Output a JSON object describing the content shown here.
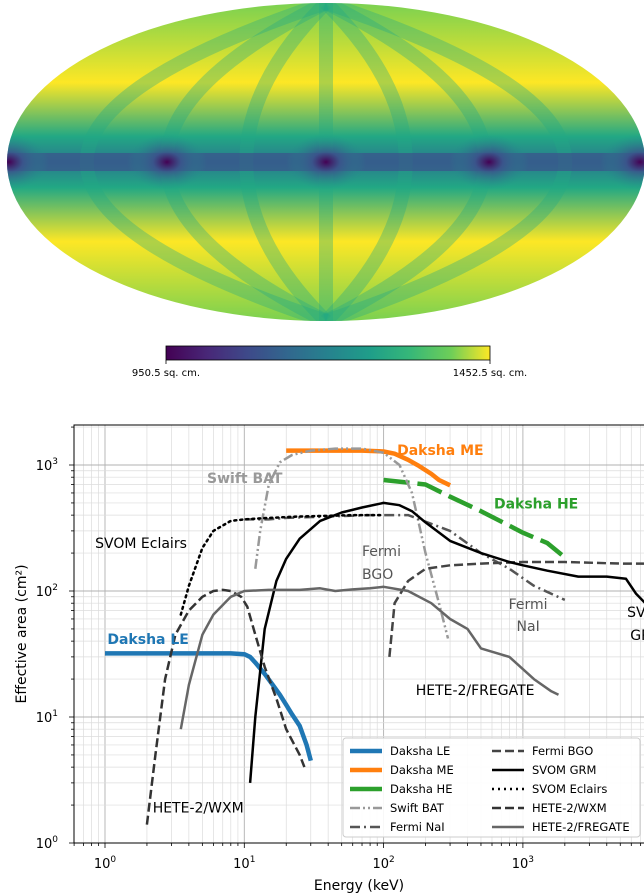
{
  "skymap": {
    "colorbar_min_label": "950.5 sq. cm.",
    "colorbar_max_label": "1452.5 sq. cm.",
    "colormap": "viridis",
    "value_range": [
      950.5,
      1452.5
    ]
  },
  "chart_data": {
    "type": "line",
    "xlabel": "Energy (keV)",
    "ylabel": "Effective area (cm²)",
    "xscale": "log",
    "yscale": "log",
    "xlim": [
      0.6,
      8000
    ],
    "ylim": [
      0.9,
      2000
    ],
    "xticks": [
      {
        "v": 1,
        "b": "10",
        "e": "0"
      },
      {
        "v": 10,
        "b": "10",
        "e": "1"
      },
      {
        "v": 100,
        "b": "10",
        "e": "2"
      },
      {
        "v": 1000,
        "b": "10",
        "e": "3"
      }
    ],
    "yticks": [
      {
        "v": 1,
        "b": "10",
        "e": "0"
      },
      {
        "v": 10,
        "b": "10",
        "e": "1"
      },
      {
        "v": 100,
        "b": "10",
        "e": "2"
      },
      {
        "v": 1000,
        "b": "10",
        "e": "3"
      }
    ],
    "grid": true,
    "legend_position": "lower-right",
    "series": [
      {
        "name": "Daksha LE",
        "color": "#1f77b4",
        "style": "solid",
        "width": 4.5,
        "x": [
          1,
          2,
          4,
          6,
          8,
          10,
          11,
          12,
          14,
          16,
          18,
          20,
          22,
          25,
          28,
          30
        ],
        "y": [
          32,
          32,
          32,
          32,
          32,
          31.5,
          30,
          27,
          22,
          18,
          15,
          12.5,
          10.5,
          8.5,
          6,
          4.5
        ]
      },
      {
        "name": "Daksha ME",
        "color": "#ff7f0e",
        "style": "solid",
        "width": 4.5,
        "x": [
          20,
          30,
          50,
          70,
          100,
          120,
          150,
          180,
          220,
          250,
          300
        ],
        "y": [
          1300,
          1300,
          1300,
          1300,
          1280,
          1230,
          1100,
          980,
          850,
          760,
          690
        ]
      },
      {
        "name": "Daksha HE",
        "color": "#2ca02c",
        "style": "dashed-segments",
        "width": 4.5,
        "x": [
          100,
          200,
          300,
          500,
          800,
          1000,
          1500,
          2000
        ],
        "y": [
          760,
          700,
          560,
          430,
          330,
          290,
          240,
          185
        ]
      },
      {
        "name": "Swift BAT",
        "color": "#999999",
        "style": "dashdotdot",
        "width": 2.5,
        "x": [
          12,
          13,
          15,
          18,
          22,
          30,
          45,
          70,
          100,
          130,
          160,
          200,
          250,
          290
        ],
        "y": [
          150,
          300,
          700,
          1050,
          1200,
          1300,
          1350,
          1350,
          1250,
          1000,
          600,
          200,
          80,
          42
        ]
      },
      {
        "name": "Fermi NaI",
        "color": "#555555",
        "style": "dashdot",
        "width": 2.5,
        "x": [
          10,
          15,
          20,
          40,
          80,
          150,
          300,
          500,
          800,
          1200,
          2000
        ],
        "y": [
          370,
          370,
          380,
          390,
          400,
          400,
          300,
          200,
          150,
          110,
          85
        ]
      },
      {
        "name": "Fermi BGO",
        "color": "#444444",
        "style": "dashed",
        "width": 2.5,
        "x": [
          110,
          120,
          150,
          200,
          300,
          500,
          1000,
          2000,
          5000,
          8000
        ],
        "y": [
          30,
          80,
          120,
          150,
          160,
          165,
          170,
          170,
          165,
          165
        ]
      },
      {
        "name": "SVOM GRM",
        "color": "#000000",
        "style": "solid",
        "width": 2.5,
        "x": [
          11,
          12,
          14,
          17,
          20,
          25,
          35,
          50,
          70,
          100,
          130,
          160,
          200,
          300,
          500,
          800,
          1000,
          1500,
          2500,
          4000,
          5500,
          6500,
          8000
        ],
        "y": [
          3,
          10,
          50,
          120,
          180,
          260,
          360,
          420,
          460,
          500,
          480,
          430,
          350,
          250,
          200,
          170,
          160,
          145,
          130,
          130,
          125,
          95,
          75
        ]
      },
      {
        "name": "SVOM Eclairs",
        "color": "#000000",
        "style": "dotted",
        "width": 2.5,
        "x": [
          3.5,
          4,
          5,
          6,
          8,
          10,
          15,
          25,
          40,
          60,
          80,
          100
        ],
        "y": [
          65,
          110,
          220,
          300,
          360,
          370,
          380,
          390,
          395,
          400,
          400,
          400
        ]
      },
      {
        "name": "HETE-2/WXM",
        "color": "#333333",
        "style": "dashed",
        "width": 2.5,
        "x": [
          2,
          2.3,
          2.7,
          3.2,
          4,
          5,
          6,
          7,
          8,
          9.5,
          10.5,
          12,
          14,
          17,
          20,
          25,
          27
        ],
        "y": [
          1.4,
          5,
          20,
          45,
          70,
          90,
          100,
          102,
          100,
          90,
          75,
          45,
          25,
          14,
          8,
          5,
          4
        ]
      },
      {
        "name": "HETE-2/FREGATE",
        "color": "#666666",
        "style": "solid",
        "width": 2.5,
        "x": [
          3.5,
          4,
          5,
          6,
          8,
          10,
          15,
          25,
          35,
          45,
          60,
          80,
          100,
          150,
          220,
          300,
          400,
          500,
          800,
          1200,
          1600,
          1800
        ],
        "y": [
          8,
          18,
          45,
          65,
          90,
          100,
          102,
          102,
          105,
          100,
          103,
          105,
          108,
          100,
          80,
          60,
          50,
          35,
          30,
          20,
          16,
          15
        ]
      }
    ],
    "annotations": [
      {
        "text": "Daksha ME",
        "x": 125,
        "y": 1200,
        "color": "#ff7f0e",
        "bold": true
      },
      {
        "text": "Daksha HE",
        "x": 620,
        "y": 450,
        "color": "#2ca02c",
        "bold": true
      },
      {
        "text": "Swift BAT",
        "x": 5.4,
        "y": 720,
        "color": "#999999",
        "bold": true
      },
      {
        "text": "SVOM Eclairs",
        "x": 0.85,
        "y": 220,
        "color": "#000000",
        "bold": false
      },
      {
        "text": "Fermi",
        "x": 70,
        "y": 190,
        "color": "#555555",
        "bold": false
      },
      {
        "text": "BGO",
        "x": 70,
        "y": 125,
        "color": "#555555",
        "bold": false
      },
      {
        "text": "Fermi",
        "x": 790,
        "y": 72,
        "color": "#555555",
        "bold": false
      },
      {
        "text": "NaI",
        "x": 900,
        "y": 48,
        "color": "#555555",
        "bold": false
      },
      {
        "text": "SVOM",
        "x": 5600,
        "y": 62,
        "color": "#000000",
        "bold": false
      },
      {
        "text": "GRM",
        "x": 5900,
        "y": 41,
        "color": "#000000",
        "bold": false
      },
      {
        "text": "Daksha LE",
        "x": 1.04,
        "y": 38,
        "color": "#1f77b4",
        "bold": true
      },
      {
        "text": "HETE-2/FREGATE",
        "x": 170,
        "y": 15,
        "color": "#000000",
        "bold": false
      },
      {
        "text": "HETE-2/WXM",
        "x": 2.2,
        "y": 1.75,
        "color": "#000000",
        "bold": false
      }
    ]
  }
}
